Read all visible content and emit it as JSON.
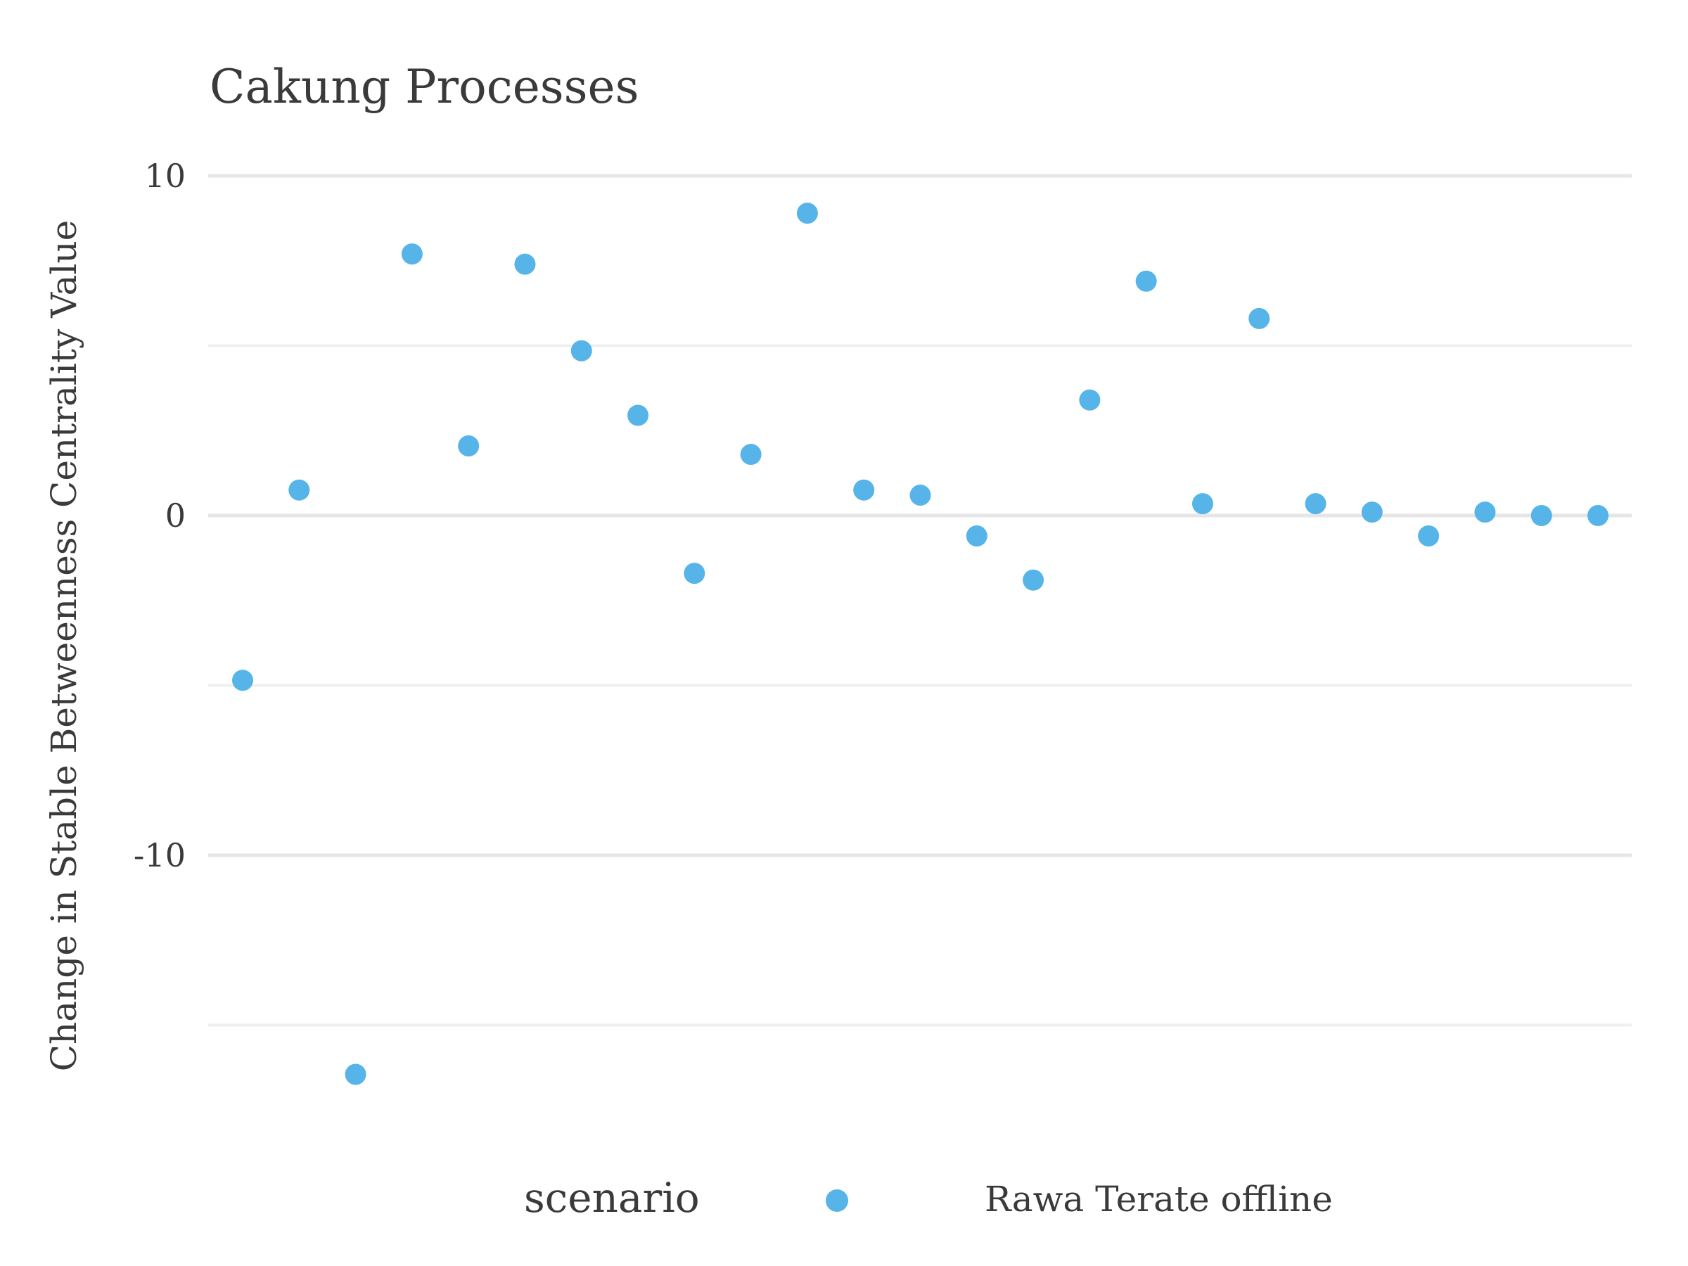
{
  "chart_data": {
    "type": "scatter",
    "title": "Cakung Processes",
    "xlabel": "",
    "ylabel": "Change in Stable Betweenness Centrality Value",
    "ylim": [
      -18,
      11.5
    ],
    "yticks": [
      10,
      0,
      -10
    ],
    "ytick_labels": [
      "10",
      "0",
      "-10"
    ],
    "minor_gridlines": [
      5,
      -5,
      -15
    ],
    "grid": true,
    "x_ticks_visible": false,
    "x": [
      1,
      2,
      3,
      4,
      5,
      6,
      7,
      8,
      9,
      10,
      11,
      12,
      13,
      14,
      15,
      16,
      17,
      18,
      19,
      20,
      21,
      22,
      23,
      24,
      25
    ],
    "series": [
      {
        "name": "Rawa Terate offline",
        "color": "#56B4E9",
        "values": [
          -4.85,
          0.75,
          -16.45,
          7.7,
          2.05,
          7.4,
          4.85,
          2.95,
          -1.7,
          1.8,
          8.9,
          0.75,
          0.6,
          -0.6,
          -1.9,
          3.4,
          6.9,
          0.35,
          5.8,
          0.35,
          0.1,
          -0.6,
          0.1,
          0.0,
          0.0
        ]
      }
    ],
    "legend": {
      "title": "scenario",
      "position": "bottom",
      "labels": [
        "Rawa Terate offline"
      ]
    }
  }
}
